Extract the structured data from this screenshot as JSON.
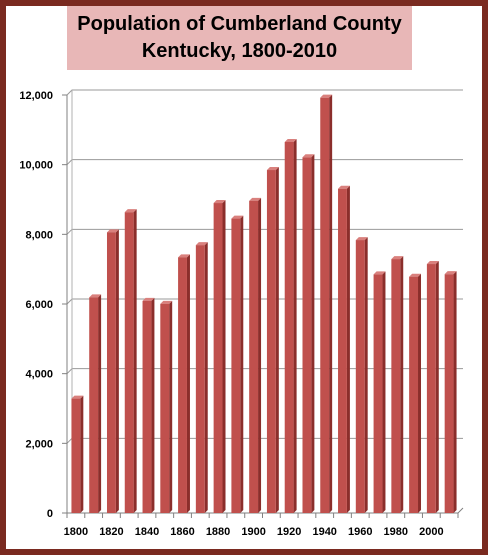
{
  "chart_data": {
    "type": "bar",
    "title_lines": [
      "Population of Cumberland County",
      "Kentucky, 1800-2010"
    ],
    "xlabel": "",
    "ylabel": "",
    "categories": [
      "1800",
      "1810",
      "1820",
      "1830",
      "1840",
      "1850",
      "1860",
      "1870",
      "1880",
      "1890",
      "1900",
      "1910",
      "1920",
      "1930",
      "1940",
      "1950",
      "1960",
      "1970",
      "1980",
      "1990",
      "2000",
      "2010"
    ],
    "values": [
      3284,
      6191,
      8058,
      8636,
      6090,
      6005,
      7340,
      7690,
      8898,
      8452,
      8962,
      9846,
      10651,
      10212,
      11923,
      9309,
      7835,
      6850,
      7289,
      6784,
      7147,
      6856
    ],
    "x_tick_labels": [
      "1800",
      "1820",
      "1840",
      "1860",
      "1880",
      "1900",
      "1920",
      "1940",
      "1960",
      "1980",
      "2000"
    ],
    "y_tick_labels": [
      "0",
      "2,000",
      "4,000",
      "6,000",
      "8,000",
      "10,000",
      "12,000"
    ],
    "ylim": [
      0,
      12000
    ],
    "grid": true,
    "legend": "none",
    "bar_color": "#c0504d",
    "bar_shadow_color": "#8b2e2b",
    "frame_color": "#7a2a20",
    "title_background": "#e8b7b7"
  }
}
